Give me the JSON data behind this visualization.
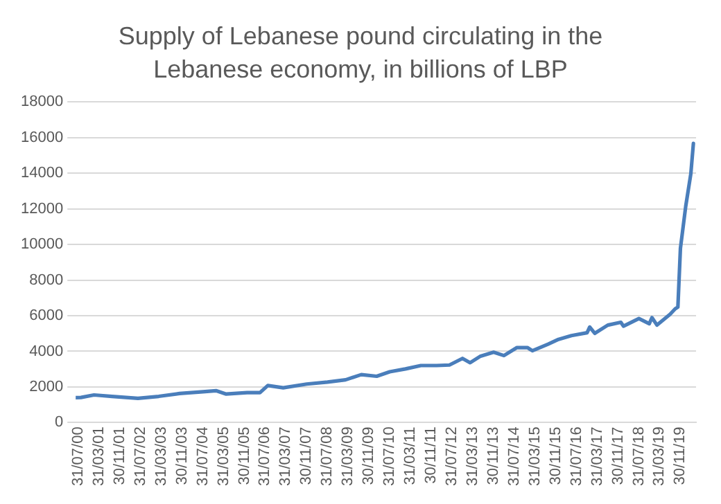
{
  "chart_data": {
    "type": "line",
    "title": "Supply of Lebanese pound circulating in the Lebanese economy, in billions of LBP",
    "x": [
      "2000-07",
      "2000-09",
      "2001-02",
      "2001-09",
      "2002-07",
      "2003-03",
      "2003-11",
      "2004-08",
      "2005-01",
      "2005-05",
      "2006-01",
      "2006-06",
      "2006-09",
      "2007-03",
      "2007-12",
      "2008-08",
      "2009-03",
      "2009-09",
      "2010-03",
      "2010-08",
      "2011-02",
      "2011-08",
      "2012-02",
      "2012-07",
      "2012-12",
      "2013-03",
      "2013-07",
      "2013-12",
      "2014-04",
      "2014-09",
      "2015-01",
      "2015-03",
      "2015-09",
      "2016-01",
      "2016-06",
      "2016-12",
      "2017-01",
      "2017-03",
      "2017-08",
      "2018-01",
      "2018-02",
      "2018-08",
      "2018-12",
      "2019-01",
      "2019-03",
      "2019-08",
      "2019-10",
      "2019-11",
      "2019-12",
      "2020-02",
      "2020-04",
      "2020-05"
    ],
    "series": [
      {
        "color": "#4a7ebb",
        "values": [
          1400,
          1410,
          1550,
          1470,
          1360,
          1470,
          1630,
          1730,
          1790,
          1600,
          1680,
          1680,
          2080,
          1950,
          2160,
          2270,
          2400,
          2690,
          2600,
          2850,
          3010,
          3200,
          3200,
          3230,
          3600,
          3360,
          3730,
          3950,
          3760,
          4210,
          4210,
          4030,
          4400,
          4670,
          4880,
          5040,
          5360,
          5010,
          5470,
          5630,
          5410,
          5840,
          5550,
          5890,
          5470,
          6080,
          6390,
          6480,
          9790,
          12140,
          13970,
          15670
        ]
      }
    ],
    "xlim": [
      "2000-07-01",
      "2020-06-01"
    ],
    "xticks": [
      {
        "value": "2000-07-31",
        "label": "31/07/00"
      },
      {
        "value": "2001-03-31",
        "label": "31/03/01"
      },
      {
        "value": "2001-11-30",
        "label": "30/11/01"
      },
      {
        "value": "2002-07-31",
        "label": "31/07/02"
      },
      {
        "value": "2003-03-31",
        "label": "31/03/03"
      },
      {
        "value": "2003-11-30",
        "label": "30/11/03"
      },
      {
        "value": "2004-07-31",
        "label": "31/07/04"
      },
      {
        "value": "2005-03-31",
        "label": "31/03/05"
      },
      {
        "value": "2005-11-30",
        "label": "30/11/05"
      },
      {
        "value": "2006-07-31",
        "label": "31/07/06"
      },
      {
        "value": "2007-03-31",
        "label": "31/03/07"
      },
      {
        "value": "2007-11-30",
        "label": "30/11/07"
      },
      {
        "value": "2008-07-31",
        "label": "31/07/08"
      },
      {
        "value": "2009-03-31",
        "label": "31/03/09"
      },
      {
        "value": "2009-11-30",
        "label": "30/11/09"
      },
      {
        "value": "2010-07-31",
        "label": "31/07/10"
      },
      {
        "value": "2011-03-31",
        "label": "31/03/11"
      },
      {
        "value": "2011-11-30",
        "label": "30/11/11"
      },
      {
        "value": "2012-07-31",
        "label": "31/07/12"
      },
      {
        "value": "2013-03-31",
        "label": "31/03/13"
      },
      {
        "value": "2013-11-30",
        "label": "30/11/13"
      },
      {
        "value": "2014-07-31",
        "label": "31/07/14"
      },
      {
        "value": "2015-03-31",
        "label": "31/03/15"
      },
      {
        "value": "2015-11-30",
        "label": "30/11/15"
      },
      {
        "value": "2016-07-31",
        "label": "31/07/16"
      },
      {
        "value": "2017-03-31",
        "label": "31/03/17"
      },
      {
        "value": "2017-11-30",
        "label": "30/11/17"
      },
      {
        "value": "2018-07-31",
        "label": "31/07/18"
      },
      {
        "value": "2019-03-31",
        "label": "31/03/19"
      },
      {
        "value": "2019-11-30",
        "label": "30/11/19"
      }
    ],
    "ylim": [
      0,
      18000
    ],
    "yticks": [
      0,
      2000,
      4000,
      6000,
      8000,
      10000,
      12000,
      14000,
      16000,
      18000
    ],
    "grid": "y",
    "legend": false,
    "marker": "none",
    "line_style": "solid"
  }
}
